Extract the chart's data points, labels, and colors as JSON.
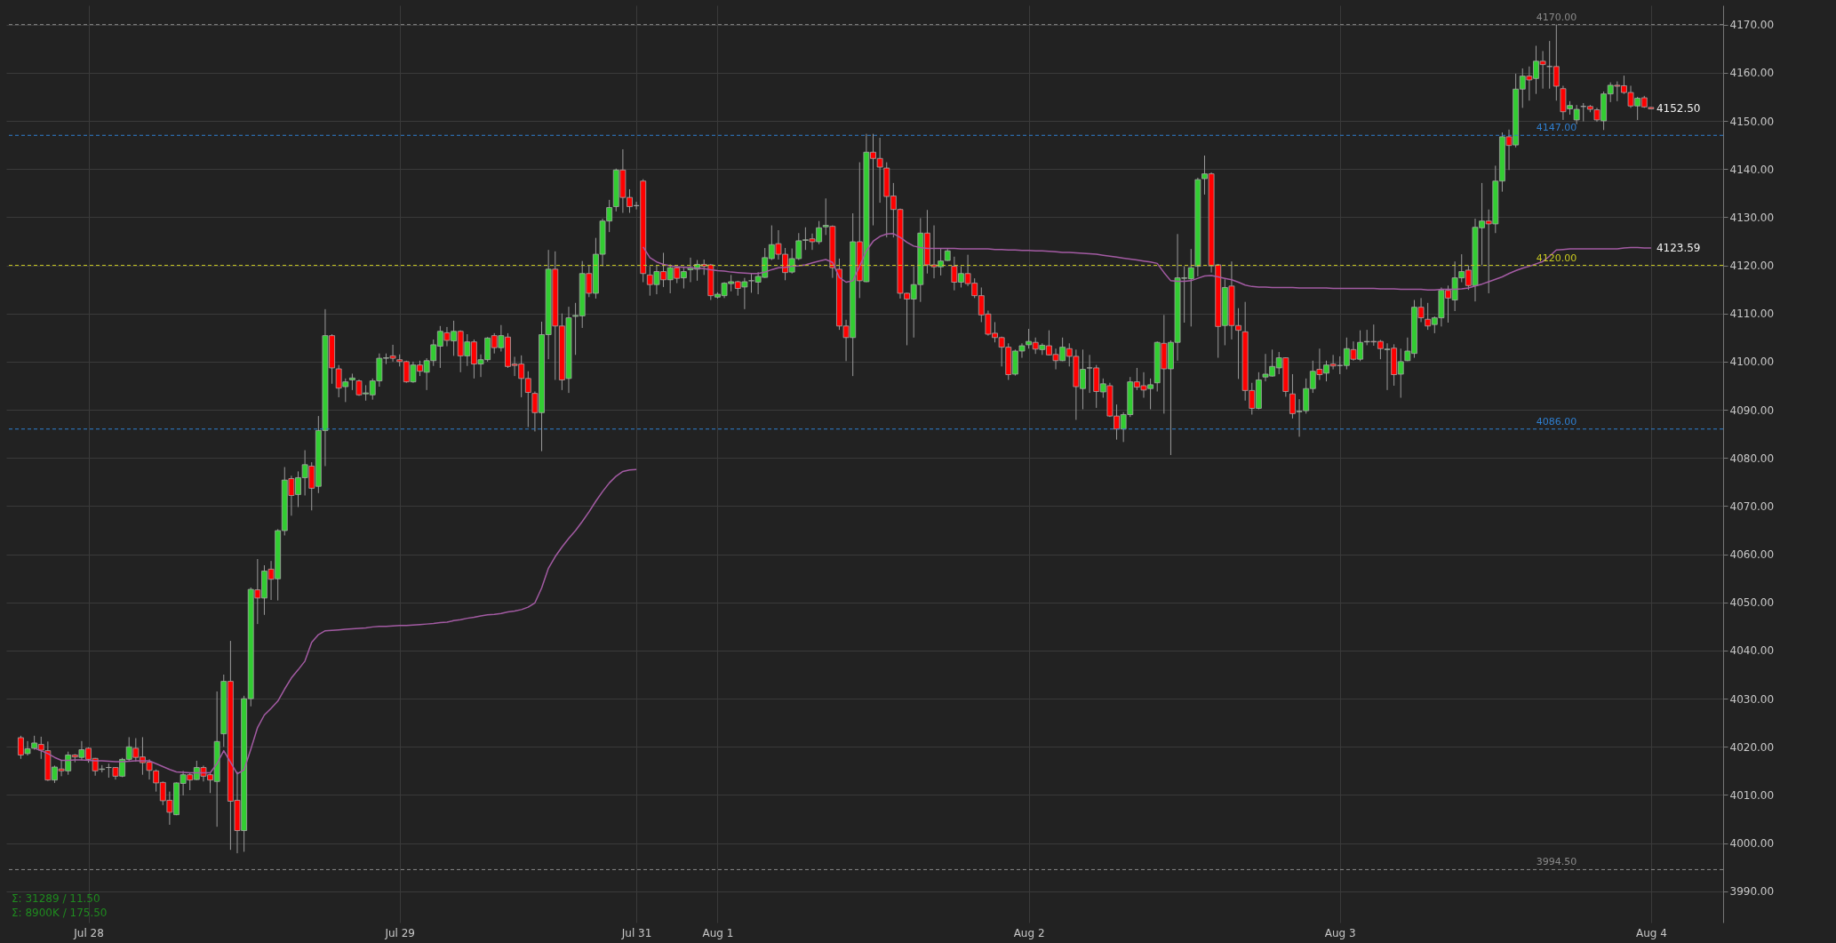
{
  "chart_data": {
    "type": "candlestick",
    "categories": [
      null,
      null,
      null,
      null,
      null,
      null,
      null,
      null,
      null,
      null,
      "Jul 28",
      null,
      null,
      null,
      null,
      null,
      null,
      null,
      null,
      null,
      null,
      null,
      null,
      null,
      null,
      null,
      null,
      null,
      null,
      null,
      null,
      null,
      null,
      null,
      null,
      null,
      null,
      null,
      null,
      null,
      null,
      null,
      null,
      null,
      null,
      null,
      null,
      null,
      null,
      null,
      null,
      null,
      null,
      null,
      null,
      null,
      "Jul 29",
      null,
      null,
      null,
      null,
      null,
      null,
      null,
      null,
      null,
      null,
      null,
      null,
      null,
      null,
      null,
      null,
      null,
      null,
      null,
      null,
      null,
      null,
      null,
      null,
      null,
      null,
      null,
      null,
      null,
      null,
      null,
      null,
      null,
      null,
      "Jul 31",
      null,
      null,
      null,
      null,
      null,
      null,
      null,
      null,
      null,
      null,
      null,
      "Aug 1",
      null,
      null,
      null,
      null,
      null,
      null,
      null,
      null,
      null,
      null,
      null,
      null,
      null,
      null,
      null,
      null,
      null,
      null,
      null,
      null,
      null,
      null,
      null,
      null,
      null,
      null,
      null,
      null,
      null,
      null,
      null,
      null,
      null,
      null,
      null,
      null,
      null,
      null,
      null,
      null,
      null,
      null,
      null,
      null,
      null,
      "Aug 2",
      null,
      null,
      null,
      null,
      null,
      null,
      null,
      null,
      null,
      null,
      null,
      null,
      null,
      null,
      null,
      null,
      null,
      null,
      null,
      null,
      null,
      null,
      null,
      null,
      null,
      null,
      null,
      null,
      null,
      null,
      null,
      null,
      null,
      null,
      null,
      null,
      null,
      null,
      null,
      null,
      null,
      null,
      null,
      null,
      null,
      "Aug 3",
      null,
      null,
      null,
      null,
      null,
      null,
      null,
      null,
      null,
      null,
      null,
      null,
      null,
      null,
      null,
      null,
      null,
      null,
      null,
      null,
      null,
      null,
      null,
      null,
      null,
      null,
      null,
      null,
      null,
      null,
      null,
      null,
      null,
      null,
      null,
      null,
      null,
      null,
      null,
      null,
      null,
      null,
      null,
      null,
      null,
      "Aug 4"
    ],
    "ohlc": [
      [
        4021.9,
        4022.3,
        4017.5,
        4018.3
      ],
      [
        4018.6,
        4021.2,
        4018.2,
        4019.6
      ],
      [
        4019.7,
        4022.3,
        4019.4,
        4020.8
      ],
      [
        4020.5,
        4022.1,
        4017.5,
        4019.3
      ],
      [
        4019.2,
        4021.1,
        4012.9,
        4013.1
      ],
      [
        4013.1,
        4016.1,
        4012.5,
        4015.8
      ],
      [
        4015.4,
        4017.3,
        4013.9,
        4015.0
      ],
      [
        4015.0,
        4019.0,
        4014.2,
        4018.3
      ],
      [
        4018.3,
        4018.5,
        4016.8,
        4017.9
      ],
      [
        4017.8,
        4021.2,
        4017.2,
        4019.4
      ],
      [
        4019.7,
        4019.9,
        4016.7,
        4017.4
      ],
      [
        4017.6,
        4017.7,
        4014.0,
        4015.0
      ],
      [
        4015.3,
        4016.2,
        4014.7,
        4015.4
      ],
      [
        4015.7,
        4016.5,
        4013.6,
        4015.7
      ],
      [
        4015.7,
        4015.8,
        4013.2,
        4013.9
      ],
      [
        4013.9,
        4017.7,
        4013.7,
        4017.4
      ],
      [
        4017.4,
        4022.0,
        4017.1,
        4020.0
      ],
      [
        4019.7,
        4021.8,
        4016.9,
        4017.8
      ],
      [
        4017.9,
        4022.0,
        4014.2,
        4016.7
      ],
      [
        4016.8,
        4017.4,
        4013.2,
        4015.1
      ],
      [
        4015.0,
        4015.3,
        4010.7,
        4012.5
      ],
      [
        4012.6,
        4012.8,
        4007.9,
        4008.8
      ],
      [
        4008.9,
        4010.7,
        4003.8,
        4006.4
      ],
      [
        4005.9,
        4012.6,
        4005.8,
        4012.5
      ],
      [
        4012.4,
        4015.0,
        4009.9,
        4014.2
      ],
      [
        4014.2,
        4014.7,
        4011.0,
        4013.1
      ],
      [
        4013.2,
        4017.1,
        4013.1,
        4015.7
      ],
      [
        4015.7,
        4016.1,
        4012.8,
        4013.9
      ],
      [
        4014.2,
        4014.5,
        4010.4,
        4013.1
      ],
      [
        4012.8,
        4031.5,
        4003.4,
        4021.1
      ],
      [
        4022.7,
        4035.0,
        4020.0,
        4033.6
      ],
      [
        4033.6,
        4042.0,
        3998.6,
        4008.7
      ],
      [
        4008.9,
        4014.8,
        3997.9,
        4002.6
      ],
      [
        4002.6,
        4030.6,
        3998.2,
        4030.0
      ],
      [
        4030.0,
        4053.1,
        4028.4,
        4052.7
      ],
      [
        4052.6,
        4059.0,
        4045.5,
        4050.9
      ],
      [
        4050.9,
        4057.7,
        4047.4,
        4056.5
      ],
      [
        4056.9,
        4058.6,
        4050.5,
        4054.8
      ],
      [
        4054.9,
        4065.2,
        4050.4,
        4064.9
      ],
      [
        4064.9,
        4078.1,
        4063.9,
        4075.4
      ],
      [
        4075.7,
        4076.3,
        4068.0,
        4072.2
      ],
      [
        4072.4,
        4077.2,
        4069.8,
        4075.9
      ],
      [
        4075.9,
        4081.6,
        4072.2,
        4078.6
      ],
      [
        4078.3,
        4079.1,
        4069.1,
        4073.7
      ],
      [
        4074.1,
        4088.7,
        4072.7,
        4085.7
      ],
      [
        4085.7,
        4110.9,
        4078.3,
        4105.4
      ],
      [
        4105.4,
        4105.7,
        4095.4,
        4098.7
      ],
      [
        4098.5,
        4099.3,
        4092.6,
        4094.5
      ],
      [
        4094.8,
        4096.5,
        4091.6,
        4095.8
      ],
      [
        4096.2,
        4097.5,
        4094.1,
        4096.6
      ],
      [
        4096.0,
        4096.3,
        4092.9,
        4093.1
      ],
      [
        4093.3,
        4095.1,
        4091.9,
        4093.5
      ],
      [
        4093.1,
        4096.5,
        4092.1,
        4096.0
      ],
      [
        4096.0,
        4101.7,
        4094.8,
        4100.7
      ],
      [
        4100.7,
        4101.7,
        4099.5,
        4100.8
      ],
      [
        4101.2,
        4103.5,
        4100.0,
        4100.7
      ],
      [
        4100.4,
        4101.5,
        4099.0,
        4100.0
      ],
      [
        4100.0,
        4100.2,
        4095.6,
        4095.8
      ],
      [
        4095.8,
        4100.0,
        4095.6,
        4099.3
      ],
      [
        4099.3,
        4100.2,
        4097.0,
        4098.0
      ],
      [
        4097.8,
        4100.7,
        4094.1,
        4100.2
      ],
      [
        4100.2,
        4104.6,
        4099.1,
        4103.5
      ],
      [
        4103.2,
        4107.4,
        4098.7,
        4106.3
      ],
      [
        4106.0,
        4107.2,
        4103.2,
        4104.4
      ],
      [
        4104.3,
        4108.5,
        4101.2,
        4106.3
      ],
      [
        4106.3,
        4106.5,
        4097.8,
        4101.2
      ],
      [
        4101.2,
        4105.7,
        4099.1,
        4104.1
      ],
      [
        4104.1,
        4104.6,
        4096.5,
        4099.5
      ],
      [
        4099.5,
        4101.5,
        4096.8,
        4100.4
      ],
      [
        4100.4,
        4105.1,
        4100.0,
        4104.9
      ],
      [
        4105.4,
        4105.9,
        4101.7,
        4102.9
      ],
      [
        4102.9,
        4107.6,
        4102.1,
        4105.4
      ],
      [
        4105.1,
        4105.9,
        4098.7,
        4099.0
      ],
      [
        4099.5,
        4101.0,
        4097.0,
        4099.2
      ],
      [
        4099.5,
        4101.3,
        4092.6,
        4096.5
      ],
      [
        4096.5,
        4098.0,
        4086.4,
        4093.6
      ],
      [
        4093.4,
        4093.8,
        4085.5,
        4089.4
      ],
      [
        4089.4,
        4108.3,
        4081.4,
        4105.6
      ],
      [
        4105.6,
        4123.2,
        4100.5,
        4119.2
      ],
      [
        4119.2,
        4122.9,
        4096.2,
        4107.4
      ],
      [
        4107.4,
        4110.0,
        4094.1,
        4096.2
      ],
      [
        4096.5,
        4111.4,
        4093.5,
        4109.1
      ],
      [
        4109.4,
        4112.2,
        4101.4,
        4109.6
      ],
      [
        4109.5,
        4120.9,
        4107.0,
        4118.3
      ],
      [
        4118.3,
        4120.0,
        4113.4,
        4114.2
      ],
      [
        4114.2,
        4125.7,
        4113.1,
        4122.3
      ],
      [
        4122.3,
        4129.7,
        4119.8,
        4129.2
      ],
      [
        4129.2,
        4133.6,
        4126.9,
        4132.0
      ],
      [
        4132.2,
        4140.1,
        4131.2,
        4139.8
      ],
      [
        4139.8,
        4144.1,
        4130.9,
        4134.1
      ],
      [
        4134.1,
        4135.8,
        4130.9,
        4132.2
      ],
      [
        4132.4,
        4133.2,
        4131.6,
        4132.4
      ],
      [
        4137.5,
        4137.9,
        4116.5,
        4118.3
      ],
      [
        4118.0,
        4119.8,
        4113.7,
        4116.0
      ],
      [
        4116.0,
        4120.0,
        4114.0,
        4118.7
      ],
      [
        4118.7,
        4122.6,
        4115.5,
        4117.0
      ],
      [
        4117.0,
        4120.2,
        4114.2,
        4119.5
      ],
      [
        4119.5,
        4119.8,
        4116.3,
        4117.3
      ],
      [
        4117.4,
        4119.5,
        4115.2,
        4118.7
      ],
      [
        4119.1,
        4121.6,
        4116.5,
        4119.5
      ],
      [
        4119.2,
        4121.1,
        4116.8,
        4120.2
      ],
      [
        4120.2,
        4121.2,
        4118.0,
        4119.8
      ],
      [
        4120.1,
        4120.3,
        4112.8,
        4113.7
      ],
      [
        4113.4,
        4114.4,
        4113.1,
        4114.0
      ],
      [
        4113.7,
        4116.5,
        4113.2,
        4116.3
      ],
      [
        4116.2,
        4118.0,
        4114.6,
        4116.6
      ],
      [
        4116.6,
        4116.8,
        4113.7,
        4115.2
      ],
      [
        4115.5,
        4117.4,
        4110.9,
        4116.6
      ],
      [
        4116.8,
        4118.3,
        4114.3,
        4116.8
      ],
      [
        4116.5,
        4118.6,
        4114.0,
        4117.7
      ],
      [
        4117.5,
        4123.6,
        4117.4,
        4121.6
      ],
      [
        4121.4,
        4128.3,
        4121.1,
        4124.3
      ],
      [
        4124.5,
        4127.3,
        4121.2,
        4122.3
      ],
      [
        4122.3,
        4123.6,
        4116.9,
        4118.5
      ],
      [
        4118.6,
        4123.5,
        4118.3,
        4121.4
      ],
      [
        4121.4,
        4126.7,
        4121.1,
        4125.1
      ],
      [
        4125.2,
        4127.9,
        4123.2,
        4125.3
      ],
      [
        4125.5,
        4126.6,
        4123.2,
        4124.9
      ],
      [
        4124.9,
        4129.2,
        4124.4,
        4127.8
      ],
      [
        4128.0,
        4133.9,
        4126.3,
        4128.3
      ],
      [
        4128.1,
        4128.3,
        4117.4,
        4119.5
      ],
      [
        4119.2,
        4121.4,
        4106.6,
        4107.4
      ],
      [
        4107.4,
        4108.7,
        4100.1,
        4105.0
      ],
      [
        4105.0,
        4130.8,
        4097.0,
        4124.9
      ],
      [
        4124.9,
        4141.4,
        4113.2,
        4116.8
      ],
      [
        4116.6,
        4147.3,
        4116.5,
        4143.5
      ],
      [
        4143.5,
        4147.3,
        4128.3,
        4142.2
      ],
      [
        4142.2,
        4146.5,
        4133.0,
        4140.4
      ],
      [
        4140.2,
        4141.4,
        4125.8,
        4134.3
      ],
      [
        4134.4,
        4137.1,
        4125.8,
        4131.6
      ],
      [
        4131.6,
        4131.8,
        4113.1,
        4114.2
      ],
      [
        4114.2,
        4114.3,
        4103.4,
        4113.0
      ],
      [
        4113.0,
        4119.8,
        4105.0,
        4116.0
      ],
      [
        4116.0,
        4129.8,
        4112.4,
        4126.7
      ],
      [
        4126.7,
        4131.5,
        4118.3,
        4120.1
      ],
      [
        4120.1,
        4128.3,
        4117.3,
        4119.7
      ],
      [
        4119.7,
        4123.6,
        4117.9,
        4120.9
      ],
      [
        4121.0,
        4123.4,
        4120.9,
        4123.0
      ],
      [
        4119.8,
        4121.8,
        4114.8,
        4116.5
      ],
      [
        4116.5,
        4119.8,
        4115.4,
        4118.3
      ],
      [
        4118.3,
        4122.2,
        4115.7,
        4116.2
      ],
      [
        4116.3,
        4117.3,
        4113.2,
        4113.7
      ],
      [
        4113.7,
        4115.4,
        4108.2,
        4109.7
      ],
      [
        4109.9,
        4110.6,
        4105.4,
        4105.7
      ],
      [
        4105.9,
        4108.2,
        4104.0,
        4105.0
      ],
      [
        4105.0,
        4105.2,
        4099.0,
        4103.0
      ],
      [
        4103.0,
        4103.8,
        4096.2,
        4097.3
      ],
      [
        4097.4,
        4102.5,
        4097.1,
        4102.2
      ],
      [
        4102.2,
        4103.8,
        4100.8,
        4103.3
      ],
      [
        4103.5,
        4106.8,
        4102.7,
        4104.2
      ],
      [
        4104.0,
        4105.0,
        4101.6,
        4102.6
      ],
      [
        4102.5,
        4103.8,
        4101.4,
        4103.4
      ],
      [
        4103.3,
        4106.5,
        4101.3,
        4101.4
      ],
      [
        4101.5,
        4102.7,
        4098.4,
        4100.2
      ],
      [
        4100.2,
        4105.0,
        4100.1,
        4103.0
      ],
      [
        4102.7,
        4103.8,
        4099.0,
        4101.1
      ],
      [
        4101.1,
        4102.5,
        4087.9,
        4094.8
      ],
      [
        4094.4,
        4102.5,
        4090.1,
        4098.4
      ],
      [
        4098.7,
        4101.4,
        4093.5,
        4098.7
      ],
      [
        4098.7,
        4099.3,
        4090.4,
        4093.8
      ],
      [
        4093.7,
        4096.5,
        4092.5,
        4095.4
      ],
      [
        4095.0,
        4095.6,
        4088.5,
        4088.7
      ],
      [
        4088.7,
        4091.1,
        4083.8,
        4086.0
      ],
      [
        4086.0,
        4089.5,
        4083.3,
        4089.0
      ],
      [
        4089.0,
        4096.8,
        4088.5,
        4095.8
      ],
      [
        4095.8,
        4098.7,
        4094.1,
        4094.7
      ],
      [
        4095.0,
        4097.8,
        4092.5,
        4094.1
      ],
      [
        4094.4,
        4096.5,
        4090.1,
        4095.2
      ],
      [
        4095.6,
        4104.2,
        4093.8,
        4104.0
      ],
      [
        4103.8,
        4109.7,
        4089.2,
        4098.5
      ],
      [
        4098.5,
        4104.4,
        4080.6,
        4104.0
      ],
      [
        4104.0,
        4126.5,
        4100.2,
        4117.4
      ],
      [
        4117.3,
        4119.8,
        4108.1,
        4117.4
      ],
      [
        4117.2,
        4123.4,
        4107.3,
        4119.5
      ],
      [
        4119.8,
        4138.2,
        4117.7,
        4137.8
      ],
      [
        4138.0,
        4142.8,
        4134.7,
        4139.0
      ],
      [
        4139.0,
        4139.3,
        4118.5,
        4119.9
      ],
      [
        4120.1,
        4120.3,
        4100.8,
        4107.3
      ],
      [
        4107.5,
        4117.1,
        4103.4,
        4115.4
      ],
      [
        4115.7,
        4120.8,
        4104.6,
        4107.5
      ],
      [
        4107.5,
        4111.1,
        4096.4,
        4106.5
      ],
      [
        4106.2,
        4112.4,
        4091.9,
        4094.0
      ],
      [
        4094.0,
        4095.6,
        4089.0,
        4090.3
      ],
      [
        4090.3,
        4097.8,
        4090.1,
        4096.2
      ],
      [
        4096.8,
        4101.6,
        4095.9,
        4097.4
      ],
      [
        4097.0,
        4102.5,
        4096.9,
        4099.0
      ],
      [
        4098.7,
        4102.0,
        4097.4,
        4100.8
      ],
      [
        4100.8,
        4100.9,
        4092.7,
        4093.8
      ],
      [
        4093.3,
        4097.4,
        4088.2,
        4089.2
      ],
      [
        4089.6,
        4092.2,
        4084.4,
        4089.7
      ],
      [
        4089.8,
        4096.5,
        4089.2,
        4094.4
      ],
      [
        4094.4,
        4100.2,
        4093.5,
        4098.0
      ],
      [
        4098.4,
        4102.7,
        4096.2,
        4097.3
      ],
      [
        4097.6,
        4100.2,
        4095.9,
        4099.3
      ],
      [
        4099.5,
        4101.4,
        4098.4,
        4099.1
      ],
      [
        4099.2,
        4101.1,
        4097.4,
        4099.2
      ],
      [
        4099.2,
        4105.0,
        4098.4,
        4102.7
      ],
      [
        4102.5,
        4104.2,
        4100.2,
        4100.5
      ],
      [
        4100.5,
        4106.5,
        4100.1,
        4104.0
      ],
      [
        4104.1,
        4106.6,
        4103.4,
        4104.2
      ],
      [
        4104.2,
        4107.7,
        4103.3,
        4104.1
      ],
      [
        4104.2,
        4104.5,
        4100.5,
        4102.7
      ],
      [
        4102.5,
        4103.8,
        4094.1,
        4102.6
      ],
      [
        4102.8,
        4103.6,
        4095.0,
        4097.3
      ],
      [
        4097.4,
        4102.7,
        4092.5,
        4100.0
      ],
      [
        4100.2,
        4105.0,
        4100.1,
        4102.2
      ],
      [
        4101.7,
        4112.8,
        4100.8,
        4111.3
      ],
      [
        4111.3,
        4113.2,
        4108.2,
        4109.1
      ],
      [
        4108.8,
        4112.2,
        4106.6,
        4107.4
      ],
      [
        4107.7,
        4109.4,
        4105.9,
        4109.1
      ],
      [
        4109.1,
        4115.4,
        4107.3,
        4114.8
      ],
      [
        4114.8,
        4115.8,
        4108.1,
        4113.2
      ],
      [
        4112.8,
        4120.8,
        4110.5,
        4117.4
      ],
      [
        4117.4,
        4122.3,
        4116.5,
        4118.7
      ],
      [
        4119.0,
        4120.0,
        4114.9,
        4115.8
      ],
      [
        4115.8,
        4129.7,
        4112.5,
        4127.9
      ],
      [
        4127.8,
        4137.1,
        4120.0,
        4129.2
      ],
      [
        4129.2,
        4131.6,
        4114.2,
        4128.6
      ],
      [
        4128.6,
        4140.7,
        4126.7,
        4137.5
      ],
      [
        4137.5,
        4147.6,
        4135.3,
        4146.7
      ],
      [
        4146.7,
        4148.2,
        4139.8,
        4144.9
      ],
      [
        4145.0,
        4159.8,
        4144.5,
        4156.6
      ],
      [
        4156.6,
        4160.9,
        4152.7,
        4159.3
      ],
      [
        4159.3,
        4161.3,
        4154.2,
        4158.5
      ],
      [
        4158.8,
        4165.6,
        4155.6,
        4162.4
      ],
      [
        4162.4,
        4164.5,
        4156.7,
        4161.7
      ],
      [
        4161.3,
        4166.6,
        4156.7,
        4161.3
      ],
      [
        4161.3,
        4170.0,
        4154.2,
        4157.2
      ],
      [
        4156.7,
        4157.3,
        4150.2,
        4151.9
      ],
      [
        4152.5,
        4154.1,
        4151.3,
        4153.2
      ],
      [
        4150.2,
        4153.3,
        4149.3,
        4152.4
      ],
      [
        4153.0,
        4153.7,
        4149.9,
        4153.0
      ],
      [
        4153.0,
        4153.3,
        4151.8,
        4152.4
      ],
      [
        4152.3,
        4152.7,
        4149.8,
        4150.2
      ],
      [
        4150.0,
        4156.1,
        4148.1,
        4155.6
      ],
      [
        4155.6,
        4158.0,
        4153.9,
        4157.4
      ],
      [
        4157.4,
        4158.2,
        4154.1,
        4157.2
      ],
      [
        4157.3,
        4159.4,
        4155.6,
        4155.9
      ],
      [
        4155.9,
        4157.3,
        4152.7,
        4153.1
      ],
      [
        4153.1,
        4155.0,
        4150.2,
        4154.7
      ],
      [
        4154.8,
        4155.2,
        4152.7,
        4152.9
      ],
      [
        4152.8,
        4152.9,
        4152.4,
        4152.5
      ]
    ],
    "series": [
      {
        "type": "line",
        "color": "#a35ba3",
        "values": [
          null,
          null,
          4019.7,
          4019.2,
          4018.6,
          4017.8,
          4017.2,
          4017.2,
          4017.3,
          4017.3,
          4017.2,
          4017.1,
          4017.1,
          4017.0,
          4016.9,
          4016.9,
          4017.0,
          4017.1,
          4017.1,
          4017.1,
          4016.5,
          4015.9,
          4015.3,
          4014.8,
          4014.7,
          4014.6,
          4014.6,
          4014.6,
          4014.6,
          4016.5,
          4019.2,
          4016.8,
          4014.4,
          4015.2,
          4019.5,
          4024.0,
          4026.6,
          4028.0,
          4029.5,
          4032.0,
          4034.3,
          4036.0,
          4037.8,
          4041.7,
          4043.3,
          4044.1,
          4044.2,
          4044.3,
          4044.4,
          4044.5,
          4044.6,
          4044.7,
          4044.9,
          4045.0,
          4045.0,
          4045.1,
          4045.2,
          4045.2,
          4045.3,
          4045.4,
          4045.5,
          4045.6,
          4045.8,
          4045.9,
          4046.2,
          4046.4,
          4046.7,
          4046.9,
          4047.2,
          4047.4,
          4047.5,
          4047.7,
          4048.0,
          4048.2,
          4048.5,
          4049.0,
          4049.9,
          4053.0,
          4057.1,
          4059.5,
          4061.5,
          4063.3,
          4064.9,
          4066.8,
          4068.8,
          4071.0,
          4073.0,
          4074.8,
          4076.2,
          4077.2,
          4077.5,
          4077.6,
          null,
          null,
          null,
          null,
          null,
          null,
          null,
          null,
          null,
          null,
          null,
          null,
          null,
          null,
          null,
          null,
          null,
          null,
          null,
          null,
          null,
          null,
          null,
          null,
          null,
          null,
          null,
          null,
          null,
          null,
          null,
          null,
          null,
          null,
          null,
          null,
          null,
          null,
          null,
          null,
          null,
          null,
          null,
          null,
          null,
          null,
          null,
          null,
          null,
          null,
          null,
          null,
          null,
          null,
          null,
          null,
          null,
          null,
          null,
          null,
          null,
          null,
          null,
          null,
          null,
          null,
          null,
          null,
          null,
          null,
          null,
          null,
          null,
          null,
          null,
          null,
          null,
          null,
          null,
          null,
          null,
          null,
          null,
          null,
          null,
          null,
          null,
          null,
          null,
          null,
          null,
          null,
          null,
          null,
          null,
          null,
          null,
          null,
          null,
          null,
          null,
          null,
          null,
          null,
          null,
          null,
          null,
          null,
          null,
          null,
          null,
          null,
          null,
          null,
          null,
          null,
          null,
          null,
          null,
          null,
          null,
          null,
          null,
          null,
          null,
          null,
          null,
          null,
          null,
          null,
          null,
          null,
          null,
          null,
          null,
          null,
          null,
          null,
          null,
          null,
          null,
          null,
          null,
          null,
          null,
          null,
          null,
          null,
          null,
          null
        ]
      },
      {
        "type": "line",
        "color": "#a35ba3",
        "values": [
          null,
          null,
          null,
          null,
          null,
          null,
          null,
          null,
          null,
          null,
          null,
          null,
          null,
          null,
          null,
          null,
          null,
          null,
          null,
          null,
          null,
          null,
          null,
          null,
          null,
          null,
          null,
          null,
          null,
          null,
          null,
          null,
          null,
          null,
          null,
          null,
          null,
          null,
          null,
          null,
          null,
          null,
          null,
          null,
          null,
          null,
          null,
          null,
          null,
          null,
          null,
          null,
          null,
          null,
          null,
          null,
          null,
          null,
          null,
          null,
          null,
          null,
          null,
          null,
          null,
          null,
          null,
          null,
          null,
          null,
          null,
          null,
          null,
          null,
          null,
          null,
          null,
          null,
          null,
          null,
          null,
          null,
          null,
          null,
          null,
          null,
          null,
          null,
          null,
          null,
          null,
          null,
          4123.8,
          4121.6,
          4120.7,
          4120.2,
          4119.9,
          4119.7,
          4119.6,
          4119.5,
          4119.4,
          4119.3,
          4119.1,
          4118.9,
          4118.8,
          4118.6,
          4118.5,
          4118.4,
          4118.3,
          4118.3,
          4118.6,
          4119.1,
          4119.5,
          4119.6,
          4119.8,
          4119.9,
          4120.1,
          4120.5,
          4120.9,
          4121.2,
          4120.6,
          4117.5,
          4116.5,
          4116.8,
          4119.8,
          4123.0,
          4125.0,
          4126.0,
          4126.5,
          4126.6,
          4125.8,
          4124.8,
          4124.0,
          4123.7,
          4123.5,
          4123.5,
          4123.5,
          4123.5,
          4123.5,
          4123.4,
          4123.4,
          4123.4,
          4123.4,
          4123.4,
          4123.3,
          4123.3,
          4123.2,
          4123.2,
          4123.1,
          4123.1,
          4123.0,
          4123.0,
          4122.9,
          4122.8,
          4122.7,
          4122.7,
          4122.6,
          4122.5,
          4122.4,
          4122.3,
          4122.1,
          4121.9,
          4121.7,
          4121.5,
          4121.3,
          4121.1,
          4120.9,
          4120.7,
          4120.4,
          4118.5,
          4116.8,
          4116.7,
          4116.7,
          4116.8,
          4117.3,
          4117.8,
          4117.9,
          4117.6,
          4117.3,
          4117.0,
          4116.5,
          4115.9,
          4115.6,
          4115.5,
          4115.5,
          4115.4,
          4115.4,
          4115.4,
          4115.4,
          4115.3,
          4115.3,
          4115.3,
          4115.3,
          4115.3,
          4115.2,
          4115.2,
          4115.2,
          4115.2,
          4115.2,
          4115.2,
          4115.2,
          4115.1,
          4115.1,
          4115.1,
          4115.0,
          4115.0,
          4115.0,
          4115.0,
          4114.9,
          4114.9,
          4115.0,
          4115.0,
          4115.0,
          4115.1,
          4115.3,
          4115.7,
          4116.1,
          4116.6,
          4117.1,
          4117.6,
          4118.3,
          4118.9,
          4119.4,
          4119.8,
          4120.3,
          4120.8,
          4121.9,
          4123.2,
          4123.3,
          4123.4,
          4123.4,
          4123.4,
          4123.4,
          4123.4,
          4123.4,
          4123.4,
          4123.4,
          4123.6,
          4123.7,
          4123.7,
          4123.6,
          4123.6
        ]
      }
    ],
    "ylim": [
      3983.5,
      4174
    ],
    "yticks": [
      {
        "value": 3990,
        "label": "3990.00"
      },
      {
        "value": 4000,
        "label": "4000.00"
      },
      {
        "value": 4010,
        "label": "4010.00"
      },
      {
        "value": 4020,
        "label": "4020.00"
      },
      {
        "value": 4030,
        "label": "4030.00"
      },
      {
        "value": 4040,
        "label": "4040.00"
      },
      {
        "value": 4050,
        "label": "4050.00"
      },
      {
        "value": 4060,
        "label": "4060.00"
      },
      {
        "value": 4070,
        "label": "4070.00"
      },
      {
        "value": 4080,
        "label": "4080.00"
      },
      {
        "value": 4090,
        "label": "4090.00"
      },
      {
        "value": 4100,
        "label": "4100.00"
      },
      {
        "value": 4110,
        "label": "4110.00"
      },
      {
        "value": 4120,
        "label": "4120.00"
      },
      {
        "value": 4130,
        "label": "4130.00"
      },
      {
        "value": 4140,
        "label": "4140.00"
      },
      {
        "value": 4150,
        "label": "4150.00"
      },
      {
        "value": 4160,
        "label": "4160.00"
      },
      {
        "value": 4170,
        "label": "4170.00"
      }
    ],
    "ref_lines": [
      {
        "axis": "y",
        "value": 4170,
        "label": "4170.00",
        "color": "#8a8a8a",
        "line_style": "dashed"
      },
      {
        "axis": "y",
        "value": 4147,
        "label": "4147.00",
        "color": "#2f7fd0",
        "line_style": "dashed"
      },
      {
        "axis": "y",
        "value": 4120,
        "label": "4120.00",
        "color": "#c8c820",
        "line_style": "dashed"
      },
      {
        "axis": "y",
        "value": 4086,
        "label": "4086.00",
        "color": "#2f7fd0",
        "line_style": "dashed"
      },
      {
        "axis": "y",
        "value": 3994.5,
        "label": "3994.50",
        "color": "#8a8a8a",
        "line_style": "dashed"
      }
    ],
    "annotations": [
      "Σ: 8900K / 175.50",
      "Σ: 31289 / 11.50",
      {
        "text": "4152.50",
        "x": "Aug 4",
        "y": 4152.5
      },
      {
        "text": "4123.59",
        "x": "Aug 4",
        "y": 4123.59
      }
    ],
    "grid": true
  }
}
